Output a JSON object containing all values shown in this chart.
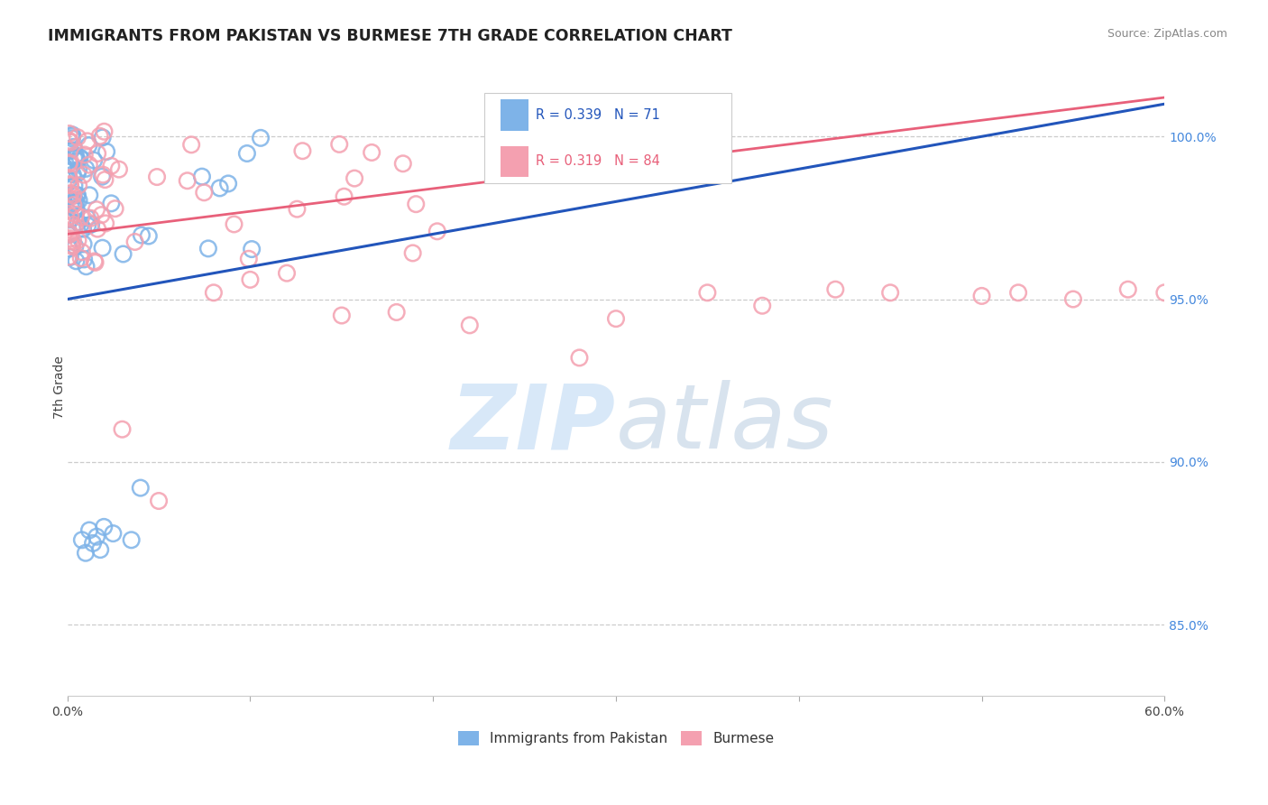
{
  "title": "IMMIGRANTS FROM PAKISTAN VS BURMESE 7TH GRADE CORRELATION CHART",
  "source": "Source: ZipAtlas.com",
  "ylabel": "7th Grade",
  "yaxis_labels": [
    "100.0%",
    "95.0%",
    "90.0%",
    "85.0%"
  ],
  "yaxis_values": [
    1.0,
    0.95,
    0.9,
    0.85
  ],
  "x_min": 0.0,
  "x_max": 0.6,
  "y_min": 0.828,
  "y_max": 1.018,
  "legend_blue_label": "Immigrants from Pakistan",
  "legend_pink_label": "Burmese",
  "r_blue": 0.339,
  "n_blue": 71,
  "r_pink": 0.319,
  "n_pink": 84,
  "color_blue": "#7EB3E8",
  "color_pink": "#F4A0B0",
  "line_blue": "#2255BB",
  "line_pink": "#E8607A",
  "watermark_zip": "ZIP",
  "watermark_atlas": "atlas",
  "watermark_color": "#D8E8F8",
  "blue_line_x0": 0.0,
  "blue_line_y0": 0.95,
  "blue_line_x1": 0.6,
  "blue_line_y1": 1.01,
  "pink_line_x0": 0.0,
  "pink_line_y0": 0.97,
  "pink_line_x1": 0.6,
  "pink_line_y1": 1.012
}
